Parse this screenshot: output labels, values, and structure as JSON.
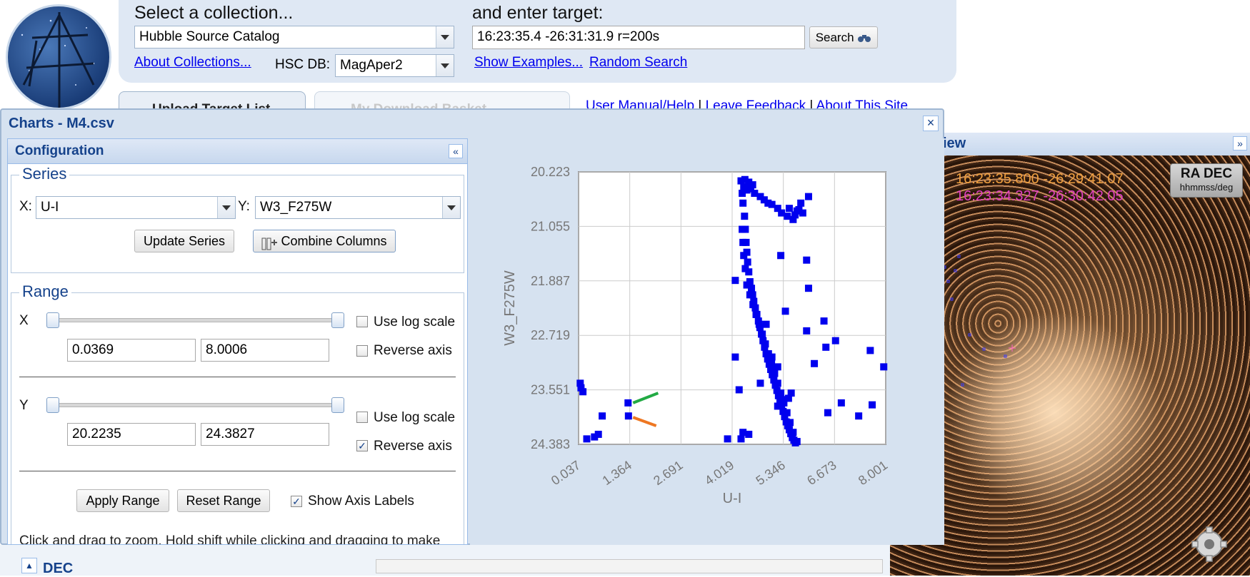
{
  "search": {
    "collection_heading": "Select a collection...",
    "collection_value": "Hubble Source Catalog",
    "about_collections": "About Collections...",
    "hsc_db_label": "HSC DB:",
    "hsc_db_value": "MagAper2",
    "target_heading": "and enter target:",
    "target_value": "16:23:35.4 -26:31:31.9 r=200s",
    "search_button": "Search",
    "show_examples": "Show Examples...",
    "random_search": "Random Search"
  },
  "top_links": {
    "upload_tab": "Upload Target List",
    "download_tab": "My Download Basket",
    "manual": "User Manual/Help",
    "sep1": "|",
    "feedback": "Leave Feedback",
    "sep2": "|",
    "about": "About This Site"
  },
  "dialog": {
    "title": "Charts - M4.csv",
    "config_title": "Configuration",
    "series_legend": "Series",
    "x_label": "X:",
    "x_value": "U-I",
    "y_label": "Y:",
    "y_value": "W3_F275W",
    "update_series": "Update Series",
    "combine_columns": "Combine Columns",
    "range_legend": "Range",
    "range_x_label": "X",
    "range_x_min": "0.0369",
    "range_x_max": "8.0006",
    "range_y_label": "Y",
    "range_y_min": "20.2235",
    "range_y_max": "24.3827",
    "use_log_scale": "Use log scale",
    "reverse_axis": "Reverse axis",
    "x_log_checked": false,
    "x_reverse_checked": false,
    "y_log_checked": false,
    "y_reverse_checked": true,
    "apply_range": "Apply Range",
    "reset_range": "Reset Range",
    "show_axis_labels": "Show Axis Labels",
    "show_axis_labels_checked": true,
    "hint": "Click and drag to zoom. Hold shift while clicking and dragging to make"
  },
  "chart_data": {
    "type": "scatter",
    "xlabel": "U-I",
    "ylabel": "W3_F275W",
    "xlim": [
      0.037,
      8.001
    ],
    "ylim": [
      20.223,
      24.383
    ],
    "y_reversed": true,
    "grid": true,
    "x_ticks": [
      "0.037",
      "1.364",
      "2.691",
      "4.019",
      "5.346",
      "6.673",
      "8.001"
    ],
    "y_ticks": [
      "20.223",
      "21.055",
      "21.887",
      "22.719",
      "23.551",
      "24.383"
    ],
    "marker_color": "#0000ee",
    "series": [
      {
        "points": [
          [
            4.25,
            20.36
          ],
          [
            4.35,
            20.34
          ],
          [
            4.45,
            20.38
          ],
          [
            4.55,
            20.42
          ],
          [
            4.32,
            20.45
          ],
          [
            4.28,
            20.55
          ],
          [
            4.4,
            20.5
          ],
          [
            4.5,
            20.48
          ],
          [
            4.6,
            20.55
          ],
          [
            4.75,
            20.6
          ],
          [
            4.85,
            20.65
          ],
          [
            4.95,
            20.7
          ],
          [
            5.05,
            20.72
          ],
          [
            5.2,
            20.78
          ],
          [
            5.3,
            20.85
          ],
          [
            5.45,
            20.9
          ],
          [
            5.6,
            20.95
          ],
          [
            5.75,
            20.8
          ],
          [
            5.8,
            20.7
          ],
          [
            5.5,
            20.78
          ],
          [
            5.65,
            20.88
          ],
          [
            5.7,
            20.82
          ],
          [
            6.0,
            20.6
          ],
          [
            5.85,
            20.85
          ],
          [
            4.3,
            20.7
          ],
          [
            4.34,
            20.9
          ],
          [
            4.36,
            21.1
          ],
          [
            4.38,
            21.3
          ],
          [
            4.4,
            21.45
          ],
          [
            4.42,
            21.6
          ],
          [
            4.45,
            21.75
          ],
          [
            4.48,
            21.9
          ],
          [
            4.52,
            22.0
          ],
          [
            4.55,
            22.1
          ],
          [
            4.58,
            22.2
          ],
          [
            4.62,
            22.3
          ],
          [
            4.66,
            22.4
          ],
          [
            4.7,
            22.5
          ],
          [
            4.74,
            22.6
          ],
          [
            4.78,
            22.7
          ],
          [
            4.82,
            22.8
          ],
          [
            4.86,
            22.9
          ],
          [
            4.9,
            23.0
          ],
          [
            4.94,
            23.08
          ],
          [
            4.98,
            23.16
          ],
          [
            5.02,
            23.24
          ],
          [
            5.06,
            23.32
          ],
          [
            5.1,
            23.4
          ],
          [
            5.14,
            23.48
          ],
          [
            5.18,
            23.56
          ],
          [
            5.22,
            23.64
          ],
          [
            5.26,
            23.72
          ],
          [
            5.3,
            23.8
          ],
          [
            5.34,
            23.88
          ],
          [
            5.38,
            23.96
          ],
          [
            5.42,
            24.04
          ],
          [
            5.46,
            24.1
          ],
          [
            5.5,
            24.16
          ],
          [
            5.54,
            24.22
          ],
          [
            5.58,
            24.28
          ],
          [
            5.62,
            24.32
          ],
          [
            5.66,
            24.36
          ],
          [
            5.7,
            24.34
          ],
          [
            5.6,
            24.2
          ],
          [
            5.52,
            24.05
          ],
          [
            5.44,
            23.9
          ],
          [
            5.36,
            23.75
          ],
          [
            5.28,
            23.6
          ],
          [
            5.2,
            23.45
          ],
          [
            5.12,
            23.3
          ],
          [
            5.04,
            23.15
          ],
          [
            4.96,
            23.0
          ],
          [
            4.88,
            22.85
          ],
          [
            4.8,
            22.7
          ],
          [
            4.72,
            22.55
          ],
          [
            4.64,
            22.4
          ],
          [
            4.56,
            22.25
          ],
          [
            4.48,
            22.1
          ],
          [
            4.4,
            21.95
          ],
          [
            4.36,
            21.7
          ],
          [
            4.32,
            21.5
          ],
          [
            4.3,
            21.3
          ],
          [
            4.28,
            21.1
          ],
          [
            5.28,
            21.5
          ],
          [
            5.95,
            21.57
          ],
          [
            6.4,
            22.5
          ],
          [
            6.7,
            22.8
          ],
          [
            6.45,
            22.9
          ],
          [
            6.0,
            22.0
          ],
          [
            5.95,
            22.65
          ],
          [
            6.15,
            23.15
          ],
          [
            7.6,
            22.95
          ],
          [
            7.95,
            23.2
          ],
          [
            6.5,
            23.9
          ],
          [
            6.85,
            23.75
          ],
          [
            7.3,
            23.95
          ],
          [
            7.65,
            23.78
          ],
          [
            4.1,
            21.88
          ],
          [
            4.1,
            23.05
          ],
          [
            4.2,
            23.55
          ],
          [
            4.3,
            24.2
          ],
          [
            4.45,
            24.23
          ],
          [
            4.25,
            24.3
          ],
          [
            4.75,
            23.45
          ],
          [
            4.9,
            22.55
          ],
          [
            5.05,
            23.05
          ],
          [
            5.2,
            23.2
          ],
          [
            5.3,
            23.7
          ],
          [
            5.2,
            23.8
          ],
          [
            5.48,
            23.68
          ],
          [
            5.55,
            23.6
          ],
          [
            5.4,
            22.35
          ],
          [
            3.9,
            24.3
          ],
          [
            0.08,
            23.45
          ],
          [
            0.1,
            23.52
          ],
          [
            0.15,
            23.58
          ],
          [
            0.25,
            24.3
          ],
          [
            0.45,
            24.27
          ],
          [
            0.55,
            24.23
          ],
          [
            0.65,
            23.95
          ],
          [
            1.32,
            23.75
          ],
          [
            1.33,
            23.95
          ]
        ]
      }
    ]
  },
  "viewer": {
    "title": "iew",
    "coord_1": "16:23:35.800 -26:29:41.07",
    "coord_2": "16:23:34.327 -26:30:42.05",
    "coord_1_color": "#f0a040",
    "coord_2_color": "#e040c0",
    "radec_line1": "RA DEC",
    "radec_line2": "hhmmss/deg",
    "settings_icon": "gear-icon"
  },
  "bottom": {
    "dec_label": "DEC"
  }
}
